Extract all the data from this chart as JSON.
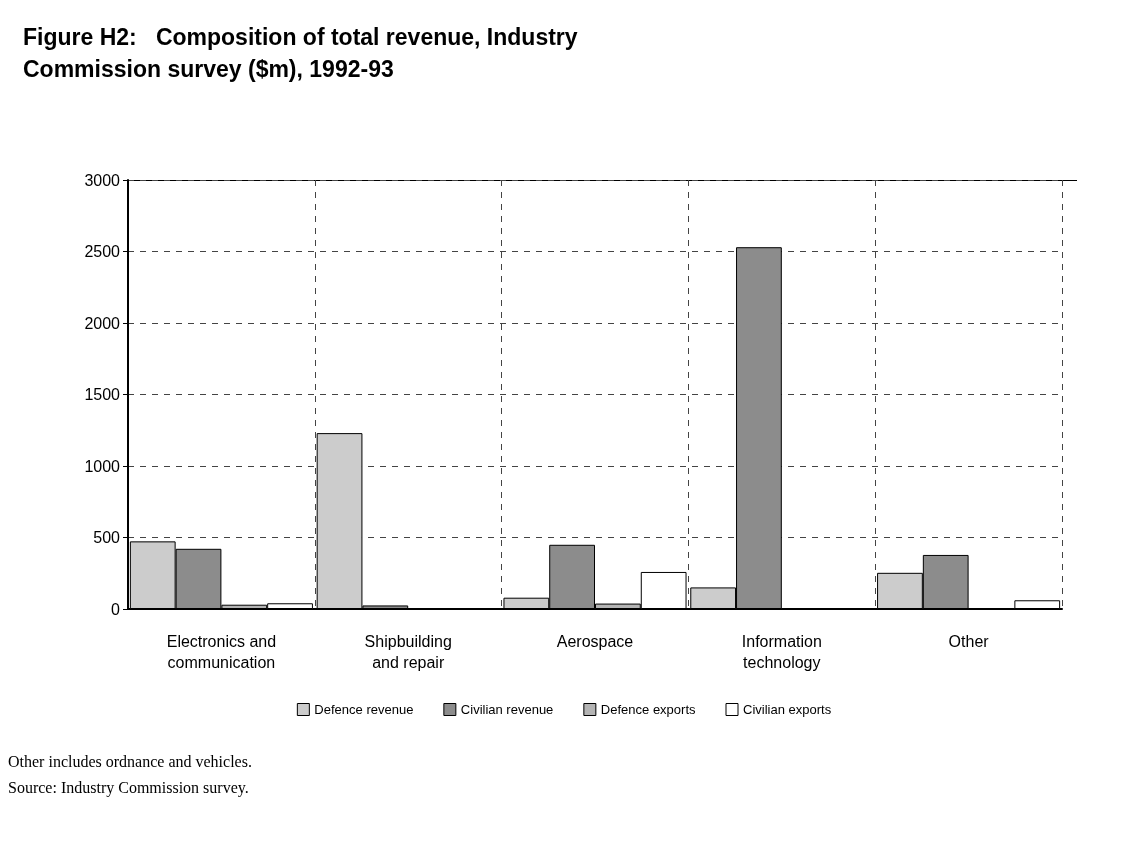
{
  "chart_data": {
    "type": "bar",
    "title": "Figure H2:   Composition of total revenue, Industry Commission survey ($m), 1992-93",
    "categories": [
      "Electronics and\ncommunication",
      "Shipbuilding\nand repair",
      "Aerospace",
      "Information\ntechnology",
      "Other"
    ],
    "series": [
      {
        "name": "Defence revenue",
        "color": "#cccccc",
        "values": [
          473,
          1230,
          79,
          151,
          253
        ]
      },
      {
        "name": "Civilian revenue",
        "color": "#8c8c8c",
        "values": [
          421,
          25,
          449,
          2530,
          378
        ]
      },
      {
        "name": "Defence exports",
        "color": "#b4b4b4",
        "values": [
          30,
          0,
          38,
          0,
          0
        ]
      },
      {
        "name": "Civilian exports",
        "color": "#ffffff",
        "values": [
          40,
          0,
          259,
          0,
          61
        ]
      }
    ],
    "ylim": [
      0,
      3000
    ],
    "yticks": [
      0,
      500,
      1000,
      1500,
      2000,
      2500,
      3000
    ],
    "grid": true,
    "legend": "bottom",
    "annotations": [
      "Other includes ordnance and vehicles.",
      "Source: Industry Commission survey."
    ]
  }
}
